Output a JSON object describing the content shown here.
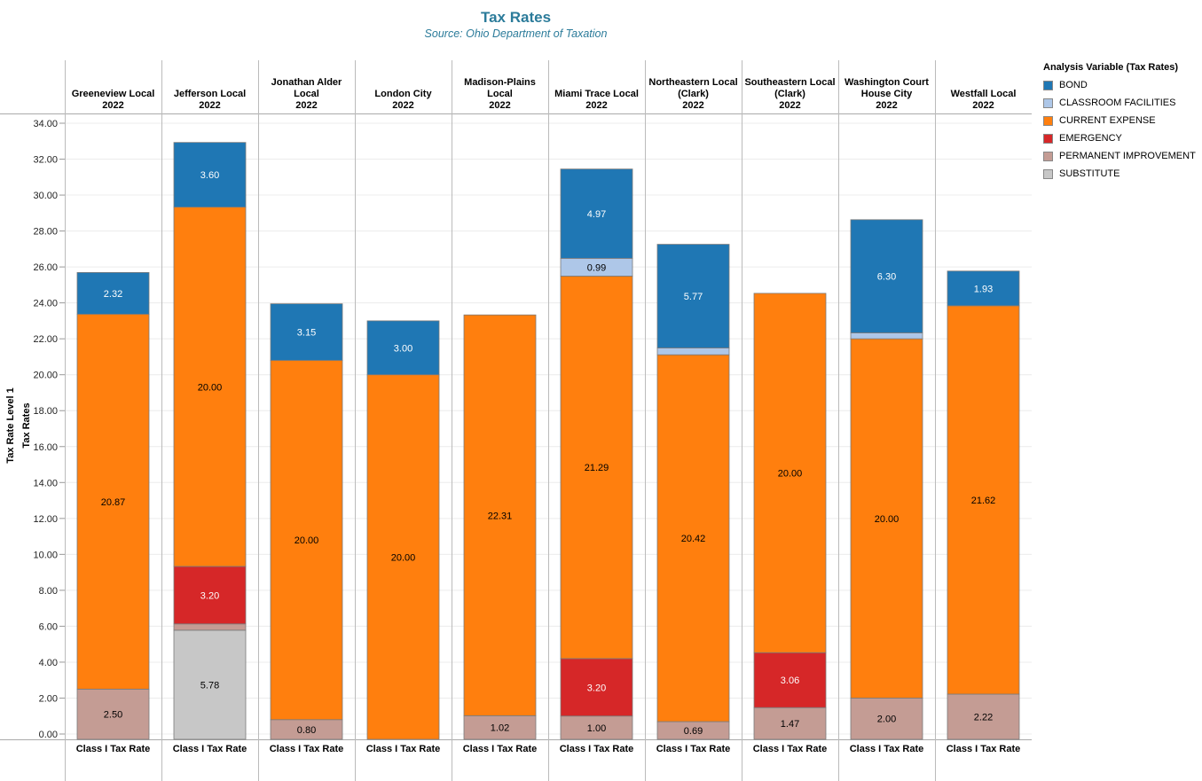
{
  "header": {
    "title": "Tax Rates",
    "subtitle": "Source: Ohio Department of Taxation"
  },
  "legend": {
    "title": "Analysis Variable (Tax Rates)",
    "items": [
      {
        "label": "BOND",
        "color": "#1f77b4"
      },
      {
        "label": "CLASSROOM FACILITIES",
        "color": "#aec7e8"
      },
      {
        "label": "CURRENT EXPENSE",
        "color": "#ff7f0e"
      },
      {
        "label": "EMERGENCY",
        "color": "#d62728"
      },
      {
        "label": "PERMANENT IMPROVEMENT",
        "color": "#c49c94"
      },
      {
        "label": "SUBSTITUTE",
        "color": "#c7c7c7"
      }
    ]
  },
  "chart_data": {
    "type": "bar",
    "stacked": true,
    "title": "Tax Rates",
    "subtitle": "Source: Ohio Department of Taxation",
    "ylabel_line1": "Tax Rate Level 1",
    "ylabel_line2": "Tax Rates",
    "xlabel": "Class I Tax Rate",
    "year": "2022",
    "ylim": [
      0,
      34
    ],
    "yticks": [
      "0.00",
      "2.00",
      "4.00",
      "6.00",
      "8.00",
      "10.00",
      "12.00",
      "14.00",
      "16.00",
      "18.00",
      "20.00",
      "22.00",
      "24.00",
      "26.00",
      "28.00",
      "30.00",
      "32.00",
      "34.00"
    ],
    "stack_order": [
      "SUBSTITUTE",
      "PERMANENT IMPROVEMENT",
      "EMERGENCY",
      "CURRENT EXPENSE",
      "CLASSROOM FACILITIES",
      "BOND"
    ],
    "colors": {
      "BOND": "#1f77b4",
      "CLASSROOM FACILITIES": "#aec7e8",
      "CURRENT EXPENSE": "#ff7f0e",
      "EMERGENCY": "#d62728",
      "PERMANENT IMPROVEMENT": "#c49c94",
      "SUBSTITUTE": "#c7c7c7"
    },
    "districts": [
      {
        "name": [
          "Greeneview Local"
        ],
        "values": {
          "PERMANENT IMPROVEMENT": 2.5,
          "CURRENT EXPENSE": 20.87,
          "BOND": 2.32
        }
      },
      {
        "name": [
          "Jefferson Local"
        ],
        "values": {
          "SUBSTITUTE": 5.78,
          "PERMANENT IMPROVEMENT": 0.35,
          "EMERGENCY": 3.2,
          "CURRENT EXPENSE": 20.0,
          "BOND": 3.6
        }
      },
      {
        "name": [
          "Jonathan Alder",
          "Local"
        ],
        "values": {
          "PERMANENT IMPROVEMENT": 0.8,
          "CURRENT EXPENSE": 20.0,
          "BOND": 3.15
        }
      },
      {
        "name": [
          "London City"
        ],
        "values": {
          "CURRENT EXPENSE": 20.0,
          "BOND": 3.0
        }
      },
      {
        "name": [
          "Madison-Plains",
          "Local"
        ],
        "values": {
          "PERMANENT IMPROVEMENT": 1.02,
          "CURRENT EXPENSE": 22.31
        }
      },
      {
        "name": [
          "Miami Trace Local"
        ],
        "values": {
          "PERMANENT IMPROVEMENT": 1.0,
          "EMERGENCY": 3.2,
          "CURRENT EXPENSE": 21.29,
          "CLASSROOM FACILITIES": 0.99,
          "BOND": 4.97
        }
      },
      {
        "name": [
          "Northeastern Local",
          "(Clark)"
        ],
        "values": {
          "PERMANENT IMPROVEMENT": 0.69,
          "CURRENT EXPENSE": 20.42,
          "CLASSROOM FACILITIES": 0.38,
          "BOND": 5.77
        }
      },
      {
        "name": [
          "Southeastern Local",
          "(Clark)"
        ],
        "values": {
          "PERMANENT IMPROVEMENT": 1.47,
          "EMERGENCY": 3.06,
          "CURRENT EXPENSE": 20.0
        }
      },
      {
        "name": [
          "Washington Court",
          "House City"
        ],
        "values": {
          "PERMANENT IMPROVEMENT": 2.0,
          "CURRENT EXPENSE": 20.0,
          "CLASSROOM FACILITIES": 0.33,
          "BOND": 6.3
        }
      },
      {
        "name": [
          "Westfall Local"
        ],
        "values": {
          "PERMANENT IMPROVEMENT": 2.22,
          "CURRENT EXPENSE": 21.62,
          "BOND": 1.93
        }
      }
    ],
    "labeled_segments": {
      "BOND": true,
      "CLASSROOM FACILITIES": "min0.5",
      "CURRENT EXPENSE": true,
      "EMERGENCY": true,
      "PERMANENT IMPROVEMENT": "min0.5",
      "SUBSTITUTE": true
    }
  }
}
